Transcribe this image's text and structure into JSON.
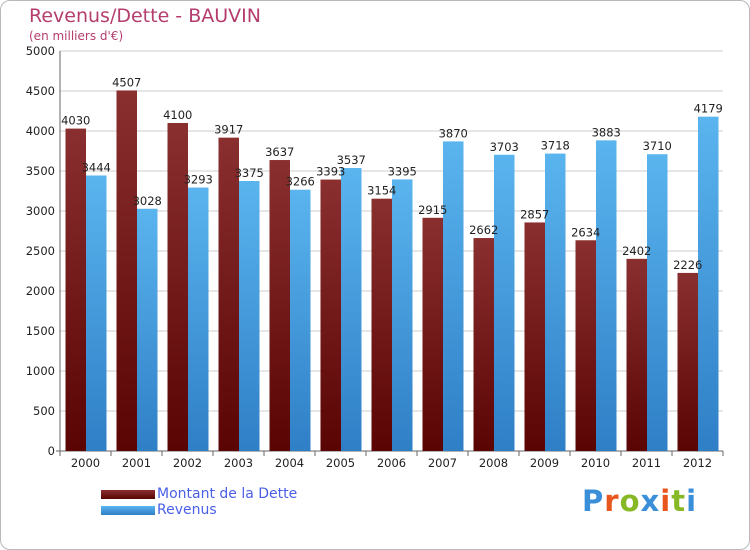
{
  "chart_title": "Revenus/Dette - BAUVIN",
  "chart_subtitle": "(en milliers d'€)",
  "brand": {
    "letters": [
      "P",
      "r",
      "o",
      "x",
      "i",
      "t",
      "i"
    ],
    "colors": [
      "#3b8fd8",
      "#e8561c",
      "#86b925",
      "#3b8fd8",
      "#e8561c",
      "#86b925",
      "#3b8fd8"
    ]
  },
  "legend": {
    "debt_label": "Montant de la Dette",
    "revenue_label": "Revenus"
  },
  "colors": {
    "debt_top": "#8a2f2f",
    "debt_bottom": "#5a0404",
    "revenue_top": "#5ab4ee",
    "revenue_bottom": "#2f7fc6",
    "axis": "#666666",
    "grid": "#cccccc",
    "title": "#b53d6d"
  },
  "chart_data": {
    "type": "bar",
    "title": "Revenus/Dette - BAUVIN",
    "ylabel": "(en milliers d'€)",
    "xlabel": "",
    "ylim": [
      0,
      5000
    ],
    "yticks": [
      0,
      500,
      1000,
      1500,
      2000,
      2500,
      3000,
      3500,
      4000,
      4500,
      5000
    ],
    "grid": true,
    "legend_position": "bottom-left",
    "categories": [
      "2000",
      "2001",
      "2002",
      "2003",
      "2004",
      "2005",
      "2006",
      "2007",
      "2008",
      "2009",
      "2010",
      "2011",
      "2012"
    ],
    "series": [
      {
        "name": "Montant de la Dette",
        "values": [
          4030,
          4507,
          4100,
          3917,
          3637,
          3393,
          3154,
          2915,
          2662,
          2857,
          2634,
          2402,
          2226
        ],
        "labels": [
          "4030",
          "4507",
          "4100",
          "3917",
          "3637",
          "3393",
          "3154",
          "2915",
          "2662",
          "2857",
          "2634",
          "2402",
          "2226"
        ]
      },
      {
        "name": "Revenus",
        "values": [
          3444,
          3028,
          3293,
          3375,
          3266,
          3537,
          3395,
          3870,
          3703,
          3718,
          3883,
          3710,
          4179
        ],
        "labels": [
          "3444",
          "3028",
          "3293",
          "3375",
          "3266",
          "3537",
          "3395",
          "3870",
          "3703",
          "3718",
          "3883",
          "3710",
          "4179"
        ]
      }
    ]
  }
}
